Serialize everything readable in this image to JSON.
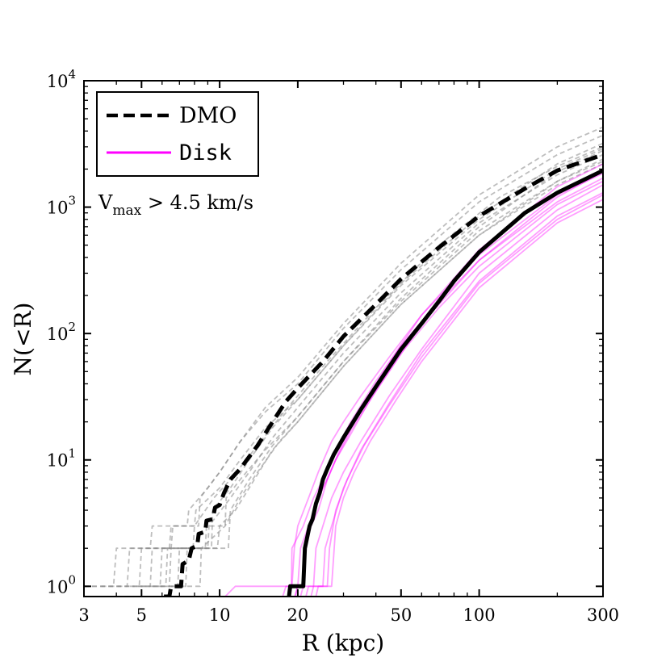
{
  "chart_data": {
    "type": "line",
    "xscale": "log",
    "yscale": "log",
    "xlabel": "R (kpc)",
    "ylabel": "N(<R)",
    "xlim": [
      3,
      300
    ],
    "ylim": [
      0.83,
      10000
    ],
    "xticks": [
      {
        "value": 3,
        "label": "3"
      },
      {
        "value": 5,
        "label": "5"
      },
      {
        "value": 10,
        "label": "10"
      },
      {
        "value": 20,
        "label": "20"
      },
      {
        "value": 50,
        "label": "50"
      },
      {
        "value": 100,
        "label": "100"
      },
      {
        "value": 300,
        "label": "300"
      }
    ],
    "yticks": [
      {
        "value": 1,
        "base": "10",
        "exp": "0"
      },
      {
        "value": 10,
        "base": "10",
        "exp": "1"
      },
      {
        "value": 100,
        "base": "10",
        "exp": "2"
      },
      {
        "value": 1000,
        "base": "10",
        "exp": "3"
      },
      {
        "value": 10000,
        "base": "10",
        "exp": "4"
      }
    ],
    "annotation": {
      "prefix": "V",
      "subscript": "max",
      "suffix": " > 4.5 km/s"
    },
    "legend": {
      "position": "top-left",
      "entries": [
        {
          "label": "DMO",
          "style": "dashed",
          "color": "#000000"
        },
        {
          "label": "Disk",
          "style": "solid",
          "color": "#ff00ff"
        }
      ]
    },
    "series": [
      {
        "name": "DMO mean",
        "color": "#000000",
        "style": "dashed",
        "width": 5,
        "opacity": 1,
        "x": [
          6.1,
          6.4,
          6.5,
          7.1,
          7.2,
          7.6,
          7.8,
          8.2,
          8.3,
          8.8,
          8.9,
          9.4,
          9.6,
          10,
          10.4,
          11,
          12,
          14,
          16,
          18,
          20,
          25,
          30,
          40,
          50,
          70,
          100,
          150,
          200,
          300
        ],
        "y": [
          0.83,
          0.83,
          1,
          1,
          1.5,
          1.6,
          2,
          2.1,
          2.6,
          2.7,
          3.3,
          3.4,
          4.2,
          4.4,
          5.5,
          7,
          8.5,
          13,
          20,
          29,
          37,
          60,
          95,
          170,
          270,
          480,
          850,
          1400,
          1950,
          2600
        ]
      },
      {
        "name": "Disk mean",
        "color": "#000000",
        "style": "solid",
        "width": 5,
        "opacity": 1,
        "x": [
          18.5,
          18.7,
          21,
          21.3,
          21.8,
          22.2,
          22.8,
          23.5,
          24.3,
          25,
          26,
          27.5,
          30,
          35,
          40,
          50,
          60,
          70,
          80,
          100,
          150,
          200,
          300
        ],
        "y": [
          0.83,
          1,
          1,
          2,
          2.5,
          3,
          3.4,
          4.5,
          5.5,
          7,
          8.5,
          11,
          15,
          25,
          38,
          75,
          120,
          180,
          260,
          440,
          900,
          1300,
          1950
        ]
      },
      {
        "name": "DMO run 1",
        "color": "#888888",
        "style": "dashed",
        "width": 1.8,
        "opacity": 0.55,
        "x": [
          3,
          3.9,
          4,
          5.4,
          5.5,
          7.5,
          7.6,
          9,
          10,
          12,
          15,
          20,
          30,
          50,
          100,
          200,
          300
        ],
        "y": [
          1,
          1,
          2,
          2,
          3,
          3,
          4,
          6,
          8,
          14,
          24,
          40,
          110,
          320,
          1100,
          2600,
          3700
        ]
      },
      {
        "name": "DMO run 2",
        "color": "#888888",
        "style": "dashed",
        "width": 1.8,
        "opacity": 0.55,
        "x": [
          3.5,
          4.4,
          4.5,
          6.5,
          6.6,
          8,
          8.1,
          10,
          12,
          15,
          20,
          30,
          50,
          100,
          200,
          300
        ],
        "y": [
          1,
          1,
          2,
          2,
          3,
          3,
          4,
          6,
          10,
          18,
          30,
          80,
          240,
          800,
          2000,
          2900
        ]
      },
      {
        "name": "DMO run 3",
        "color": "#888888",
        "style": "dashed",
        "width": 1.8,
        "opacity": 0.55,
        "x": [
          4.5,
          5.9,
          6,
          8.8,
          8.9,
          10.5,
          10.6,
          12,
          15,
          20,
          30,
          50,
          100,
          200,
          300
        ],
        "y": [
          1,
          1,
          2,
          2,
          3,
          3,
          5,
          7,
          12,
          22,
          60,
          180,
          650,
          1600,
          2300
        ]
      },
      {
        "name": "DMO run 4",
        "color": "#888888",
        "style": "dashed",
        "width": 1.8,
        "opacity": 0.55,
        "x": [
          5.5,
          6.9,
          7,
          9.8,
          10,
          11.5,
          13,
          16,
          20,
          30,
          50,
          100,
          200,
          300
        ],
        "y": [
          1,
          1,
          2,
          2,
          3,
          4,
          6,
          12,
          20,
          55,
          170,
          600,
          1500,
          2200
        ]
      },
      {
        "name": "DMO run 5",
        "color": "#888888",
        "style": "dashed",
        "width": 1.8,
        "opacity": 0.55,
        "x": [
          4.8,
          6.2,
          6.3,
          9.3,
          9.4,
          11,
          13,
          16,
          20,
          30,
          50,
          100,
          200,
          300
        ],
        "y": [
          1,
          1,
          2,
          2,
          4,
          6,
          10,
          18,
          30,
          80,
          250,
          850,
          2200,
          3200
        ]
      },
      {
        "name": "DMO run 6",
        "color": "#888888",
        "style": "dashed",
        "width": 1.8,
        "opacity": 0.55,
        "x": [
          3,
          4.9,
          5,
          6.4,
          6.5,
          8.3,
          8.4,
          10,
          12,
          15,
          20,
          30,
          50,
          100,
          200,
          300
        ],
        "y": [
          1,
          1,
          2,
          2,
          3,
          3,
          5,
          8,
          14,
          26,
          45,
          120,
          360,
          1250,
          3000,
          4300
        ]
      },
      {
        "name": "DMO run 7",
        "color": "#888888",
        "style": "dashed",
        "width": 1.8,
        "opacity": 0.55,
        "x": [
          5.9,
          7.4,
          7.5,
          10.8,
          11,
          13,
          16,
          20,
          30,
          50,
          100,
          200,
          300
        ],
        "y": [
          1,
          1,
          2,
          2,
          4,
          7,
          13,
          22,
          60,
          190,
          700,
          1900,
          2800
        ]
      },
      {
        "name": "DMO run 8",
        "color": "#888888",
        "style": "dashed",
        "width": 1.8,
        "opacity": 0.55,
        "x": [
          4,
          5.4,
          5.5,
          7.9,
          8,
          9.5,
          11,
          14,
          18,
          25,
          40,
          70,
          120,
          200,
          300
        ],
        "y": [
          1,
          1,
          2,
          2,
          3,
          5,
          7,
          13,
          25,
          55,
          160,
          500,
          1200,
          2100,
          3000
        ]
      },
      {
        "name": "DMO run 9",
        "color": "#888888",
        "style": "dashed",
        "width": 1.8,
        "opacity": 0.55,
        "x": [
          6.5,
          8.4,
          8.5,
          10.5,
          12,
          14,
          17,
          20,
          30,
          50,
          100,
          200,
          300
        ],
        "y": [
          1,
          1,
          2,
          3,
          5,
          8,
          14,
          20,
          55,
          170,
          600,
          1600,
          2400
        ]
      },
      {
        "name": "DMO run 10",
        "color": "#888888",
        "style": "dashed",
        "width": 1.8,
        "opacity": 0.55,
        "x": [
          5,
          6.4,
          6.5,
          9,
          9.1,
          11,
          13,
          16,
          20,
          30,
          50,
          100,
          200,
          300
        ],
        "y": [
          1,
          1,
          2,
          2,
          3,
          5,
          8,
          15,
          26,
          70,
          210,
          750,
          1800,
          2600
        ]
      },
      {
        "name": "Disk run 1",
        "color": "#ff00ff",
        "style": "solid",
        "width": 1.8,
        "opacity": 0.38,
        "x": [
          10.5,
          11.5,
          12,
          18.9,
          19,
          21,
          23,
          25,
          28,
          32,
          40,
          60,
          100,
          200,
          300
        ],
        "y": [
          0.83,
          1,
          1,
          1,
          2,
          3,
          5,
          7,
          12,
          20,
          42,
          140,
          420,
          1250,
          1850
        ]
      },
      {
        "name": "Disk run 2",
        "color": "#ff00ff",
        "style": "solid",
        "width": 1.8,
        "opacity": 0.38,
        "x": [
          17.5,
          18,
          18.4,
          21,
          21.5,
          23,
          25,
          28,
          32,
          40,
          60,
          100,
          200,
          300
        ],
        "y": [
          0.83,
          1,
          1,
          1,
          2,
          4,
          6,
          10,
          17,
          35,
          120,
          380,
          1100,
          1700
        ]
      },
      {
        "name": "Disk run 3",
        "color": "#ff00ff",
        "style": "solid",
        "width": 1.8,
        "opacity": 0.38,
        "x": [
          19.5,
          20,
          20.4,
          23,
          23.5,
          25,
          27,
          30,
          35,
          45,
          60,
          100,
          200,
          300
        ],
        "y": [
          0.83,
          1,
          1,
          1,
          2,
          3,
          5,
          8,
          14,
          32,
          75,
          300,
          950,
          1500
        ]
      },
      {
        "name": "Disk run 4",
        "color": "#ff00ff",
        "style": "solid",
        "width": 1.8,
        "opacity": 0.38,
        "x": [
          21.5,
          22,
          22.4,
          25,
          25.5,
          27,
          30,
          35,
          45,
          60,
          100,
          200,
          300
        ],
        "y": [
          0.83,
          1,
          1,
          1,
          2,
          3,
          6,
          12,
          28,
          70,
          260,
          850,
          1300
        ]
      },
      {
        "name": "Disk run 5",
        "color": "#ff00ff",
        "style": "solid",
        "width": 1.8,
        "opacity": 0.38,
        "x": [
          20.5,
          21,
          21.4,
          22.5,
          24,
          26,
          29,
          33,
          40,
          50,
          70,
          100,
          200,
          300
        ],
        "y": [
          0.83,
          1,
          2,
          3,
          4,
          7,
          12,
          20,
          40,
          80,
          180,
          380,
          1200,
          1900
        ]
      },
      {
        "name": "Disk run 6",
        "color": "#ff00ff",
        "style": "solid",
        "width": 1.8,
        "opacity": 0.38,
        "x": [
          18.5,
          19,
          19.4,
          20,
          22,
          24,
          27,
          30,
          35,
          45,
          60,
          100,
          200,
          300
        ],
        "y": [
          0.83,
          1,
          2,
          3,
          5,
          8,
          14,
          20,
          32,
          65,
          140,
          460,
          1450,
          2200
        ]
      },
      {
        "name": "Disk run 7",
        "color": "#ff00ff",
        "style": "solid",
        "width": 1.8,
        "opacity": 0.38,
        "x": [
          22.5,
          23,
          23.4,
          26,
          26.5,
          28,
          31,
          36,
          45,
          60,
          100,
          200,
          300
        ],
        "y": [
          0.83,
          1,
          1,
          1,
          2,
          4,
          7,
          13,
          27,
          65,
          250,
          800,
          1250
        ]
      },
      {
        "name": "Disk run 8",
        "color": "#ff00ff",
        "style": "solid",
        "width": 1.8,
        "opacity": 0.38,
        "x": [
          19.5,
          20,
          20.5,
          22,
          24,
          26,
          28,
          32,
          38,
          50,
          70,
          100,
          200,
          300
        ],
        "y": [
          0.83,
          1,
          2,
          3,
          5,
          7,
          10,
          16,
          30,
          70,
          160,
          340,
          1050,
          1600
        ]
      },
      {
        "name": "Disk run 9",
        "color": "#ff00ff",
        "style": "solid",
        "width": 1.8,
        "opacity": 0.38,
        "x": [
          23.5,
          24,
          24.4,
          27,
          28,
          30,
          33,
          38,
          48,
          60,
          100,
          200,
          300
        ],
        "y": [
          0.83,
          1,
          1,
          1,
          3,
          5,
          8,
          14,
          30,
          60,
          230,
          750,
          1150
        ]
      }
    ]
  }
}
